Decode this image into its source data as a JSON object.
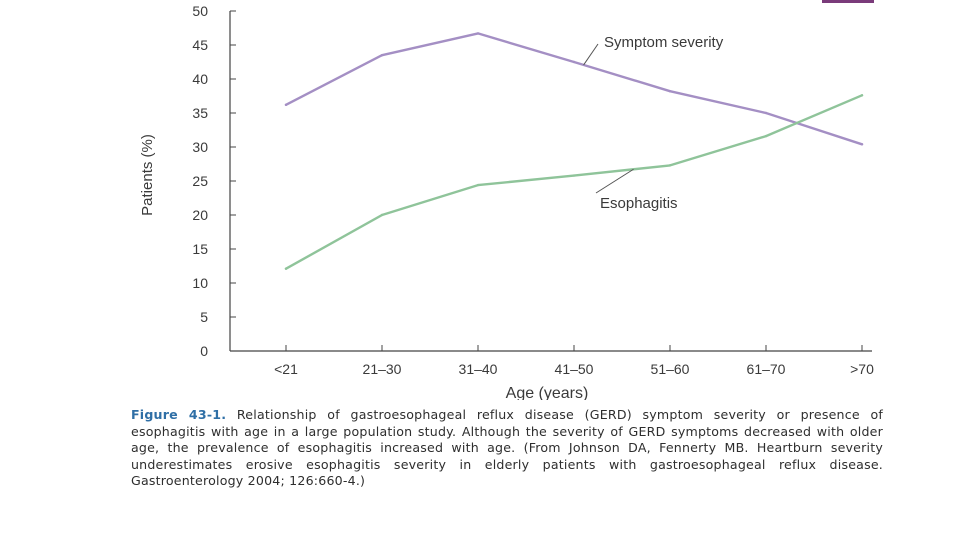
{
  "colors": {
    "accent": "#7a3b7a",
    "caption_label": "#2f6fa6",
    "axis": "#444444"
  },
  "chart_data": {
    "type": "line",
    "title": "",
    "xlabel": "Age (years)",
    "ylabel": "Patients (%)",
    "categories": [
      "<21",
      "21–30",
      "31–40",
      "41–50",
      "51–60",
      "61–70",
      ">70"
    ],
    "ylim": [
      0,
      50
    ],
    "yticks": [
      0,
      5,
      10,
      15,
      20,
      25,
      30,
      35,
      40,
      45,
      50
    ],
    "grid": false,
    "series": [
      {
        "name": "Symptom severity",
        "color": "#a48fc4",
        "values": [
          36.2,
          43.5,
          46.7,
          42.5,
          38.2,
          35.0,
          30.4
        ]
      },
      {
        "name": "Esophagitis",
        "color": "#8fc49a",
        "values": [
          12.1,
          20.0,
          24.4,
          25.8,
          27.3,
          31.6,
          37.6
        ]
      }
    ],
    "annotations": [
      {
        "text": "Symptom severity",
        "series": 0
      },
      {
        "text": "Esophagitis",
        "series": 1
      }
    ]
  },
  "caption": {
    "label": "Figure 43-1.",
    "text": "Relationship of gastroesophageal reflux disease (GERD) symptom severity or presence of esophagitis with age in a large population study. Although the severity of GERD symptoms decreased with older age, the prevalence of esophagitis increased with age. (From Johnson DA, Fennerty MB. Heartburn severity underestimates erosive esophagitis severity in elderly patients with gastroesophageal reflux disease. Gastroenterology 2004; 126:660-4.)"
  }
}
